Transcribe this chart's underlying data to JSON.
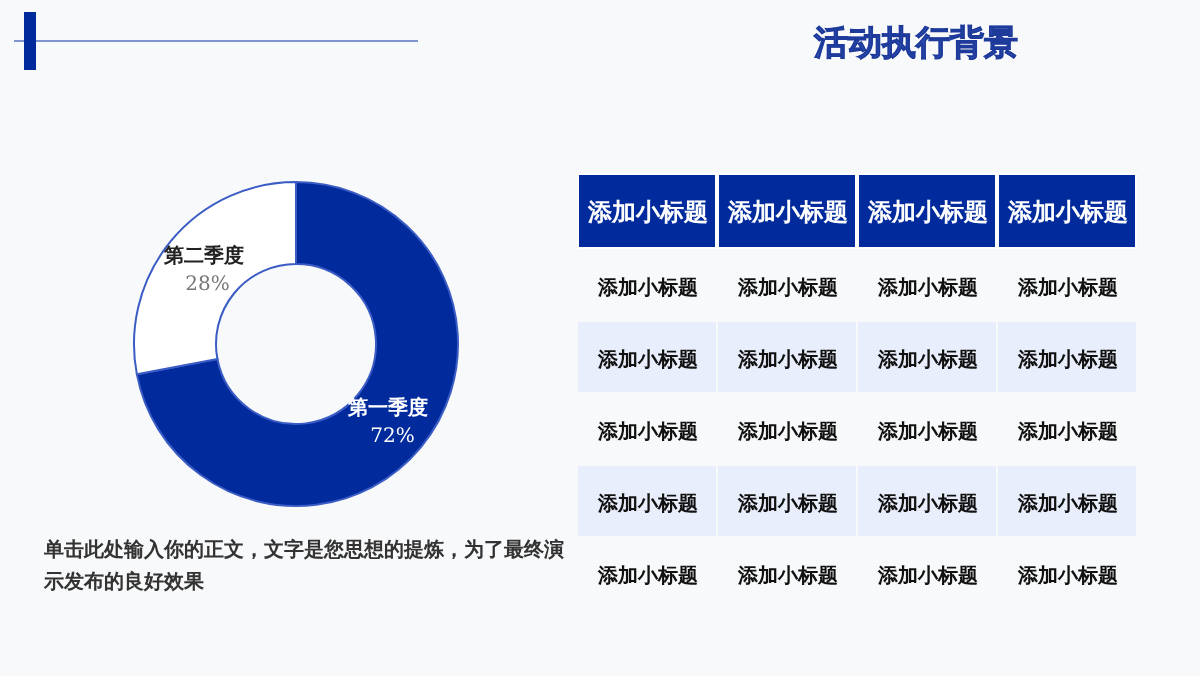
{
  "chart_data": [
    {
      "type": "donut",
      "title": "活动执行背景",
      "categories": [
        "第一季度",
        "第二季度"
      ],
      "values": [
        72,
        28
      ],
      "colors": [
        "#012b9c",
        "#ffffff"
      ],
      "value_labels": [
        "72%",
        "28%"
      ],
      "annotations": [
        "单击此处输入你的正文，文字是您思想的提炼，为了最终演示发布的良好效果"
      ]
    },
    {
      "type": "other",
      "annotations": [
        "添加小标题",
        "添加小标题",
        "添加小标题",
        "添加小标题",
        "添加小标题",
        "添加小标题",
        "添加小标题",
        "添加小标题",
        "添加小标题",
        "添加小标题",
        "添加小标题",
        "添加小标题",
        "添加小标题",
        "添加小标题",
        "添加小标题",
        "添加小标题",
        "添加小标题",
        "添加小标题",
        "添加小标题",
        "添加小标题",
        "添加小标题",
        "添加小标题",
        "添加小标题",
        "添加小标题"
      ]
    }
  ]
}
